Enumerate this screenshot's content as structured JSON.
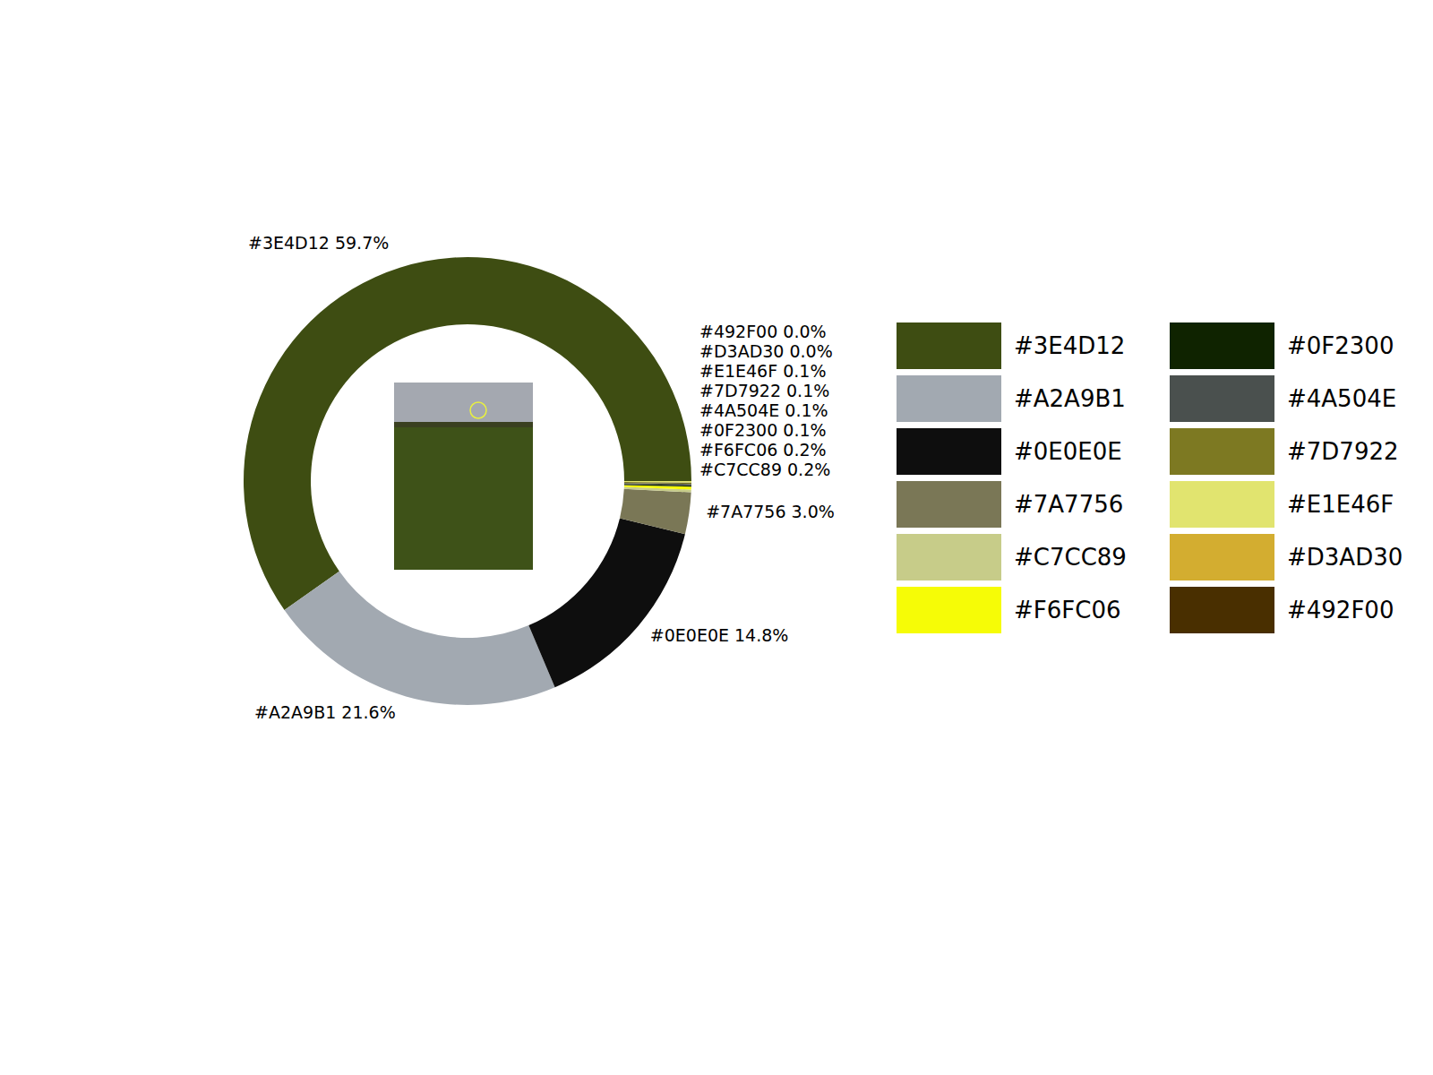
{
  "chart_data": {
    "type": "pie",
    "categories": [
      "#3E4D12",
      "#A2A9B1",
      "#0E0E0E",
      "#7A7756",
      "#C7CC89",
      "#F6FC06",
      "#0F2300",
      "#4A504E",
      "#7D7922",
      "#E1E46F",
      "#D3AD30",
      "#492F00"
    ],
    "values": [
      59.7,
      21.6,
      14.8,
      3.0,
      0.2,
      0.2,
      0.1,
      0.1,
      0.1,
      0.1,
      0.0,
      0.0
    ],
    "value_labels": [
      "#3E4D12 59.7%",
      "#A2A9B1 21.6%",
      "#0E0E0E 14.8%",
      "#7A7756 3.0%",
      "#C7CC89 0.2%",
      "#F6FC06 0.2%",
      "#0F2300 0.1%",
      "#4A504E 0.1%",
      "#7D7922 0.1%",
      "#E1E46F 0.1%",
      "#D3AD30 0.0%",
      "#492F00 0.0%"
    ],
    "colors": [
      "#3E4D12",
      "#A2A9B1",
      "#0E0E0E",
      "#7A7756",
      "#C7CC89",
      "#F6FC06",
      "#0F2300",
      "#4A504E",
      "#7D7922",
      "#E1E46F",
      "#D3AD30",
      "#492F00"
    ],
    "data_labels": true,
    "legend": "right"
  }
}
